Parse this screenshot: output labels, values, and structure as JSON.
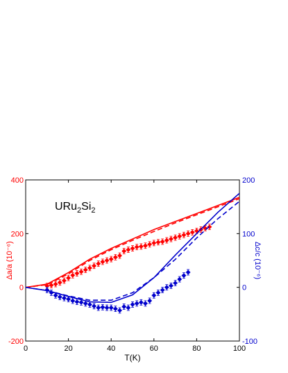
{
  "chart_data": {
    "type": "line",
    "annotation": {
      "formula": "URu",
      "sub1": "2",
      "mid": "Si",
      "sub2": "2"
    },
    "xlabel": "T(K)",
    "ylabel_left": "Δa/a (10⁻⁶)",
    "ylabel_right": "Δc/c (10⁻⁶)",
    "xlim": [
      0,
      100
    ],
    "xticks": [
      0,
      20,
      40,
      60,
      80,
      100
    ],
    "ylim_left": [
      -200,
      400
    ],
    "yticks_left": [
      -200,
      0,
      200,
      400
    ],
    "ylim_right": [
      -100,
      200
    ],
    "yticks_right": [
      -100,
      0,
      100,
      200
    ],
    "grid": false,
    "legend": "none",
    "colors": {
      "a_axis": "#ff0000",
      "c_axis": "#0000cc",
      "axes": "#000000"
    },
    "series": [
      {
        "axis": "left",
        "color": "#ff0000",
        "style": "solid",
        "x": [
          0,
          10,
          20,
          30,
          40,
          50,
          60,
          70,
          80,
          90,
          100
        ],
        "y": [
          0,
          12,
          55,
          105,
          145,
          180,
          215,
          245,
          275,
          305,
          335
        ]
      },
      {
        "axis": "left",
        "color": "#ff0000",
        "style": "dashed",
        "x": [
          0,
          10,
          20,
          30,
          40,
          50,
          60,
          70,
          80,
          90,
          100
        ],
        "y": [
          0,
          10,
          50,
          100,
          140,
          175,
          208,
          240,
          270,
          300,
          330
        ]
      },
      {
        "axis": "left",
        "color": "#ff0000",
        "style": "markers",
        "x": [
          10,
          12,
          14,
          16,
          18,
          20,
          22,
          24,
          26,
          28,
          30,
          32,
          34,
          36,
          38,
          40,
          42,
          44,
          46,
          48,
          50,
          52,
          54,
          56,
          58,
          60,
          62,
          64,
          66,
          68,
          70,
          72,
          74,
          76,
          78,
          80,
          82,
          84,
          86
        ],
        "y": [
          5,
          8,
          12,
          18,
          25,
          35,
          45,
          52,
          58,
          65,
          72,
          80,
          88,
          95,
          100,
          105,
          112,
          118,
          135,
          140,
          145,
          150,
          152,
          155,
          160,
          165,
          168,
          170,
          175,
          180,
          185,
          190,
          195,
          200,
          205,
          210,
          215,
          220,
          225
        ]
      },
      {
        "axis": "right",
        "color": "#0000cc",
        "style": "solid",
        "x": [
          0,
          10,
          20,
          30,
          40,
          50,
          60,
          70,
          80,
          90,
          100
        ],
        "y": [
          0,
          -6,
          -17,
          -27,
          -28,
          -14,
          18,
          60,
          100,
          140,
          175
        ]
      },
      {
        "axis": "right",
        "color": "#0000cc",
        "style": "dashed",
        "x": [
          0,
          10,
          20,
          30,
          40,
          50,
          60,
          70,
          80,
          90,
          100
        ],
        "y": [
          0,
          -6,
          -16,
          -24,
          -24,
          -10,
          18,
          52,
          92,
          128,
          160
        ]
      },
      {
        "axis": "right",
        "color": "#0000cc",
        "style": "markers",
        "x": [
          10,
          12,
          14,
          16,
          18,
          20,
          22,
          24,
          26,
          28,
          30,
          32,
          34,
          36,
          38,
          40,
          42,
          44,
          46,
          48,
          50,
          52,
          54,
          56,
          58,
          60,
          62,
          64,
          66,
          68,
          70,
          72,
          74,
          76
        ],
        "y": [
          -5,
          -10,
          -15,
          -18,
          -20,
          -22,
          -25,
          -27,
          -28,
          -30,
          -32,
          -35,
          -38,
          -37,
          -38,
          -38,
          -40,
          -43,
          -36,
          -38,
          -32,
          -30,
          -28,
          -30,
          -25,
          -15,
          -10,
          -5,
          0,
          3,
          8,
          15,
          22,
          28
        ]
      }
    ]
  }
}
